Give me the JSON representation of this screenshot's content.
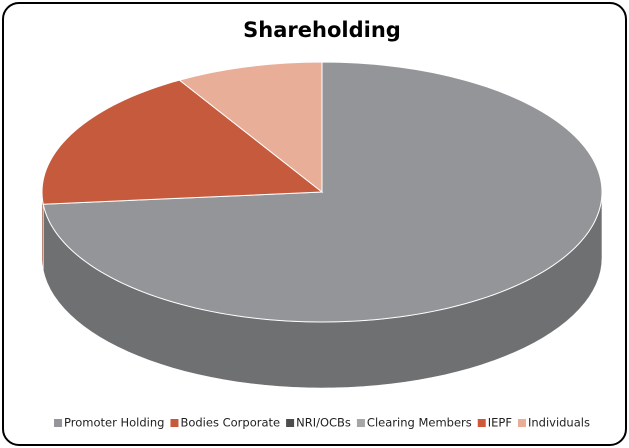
{
  "chart_data": {
    "type": "pie3d",
    "title": "Shareholding",
    "categories": [
      "Promoter Holding",
      "Bodies Corporate",
      "NRI/OCBs",
      "Clearing Members",
      "IEPF",
      "Individuals"
    ],
    "values": [
      73.5,
      18,
      0,
      0,
      0,
      8.5
    ],
    "colors": [
      "#939598",
      "#c55a3d",
      "#4d4d4f",
      "#a6a6a6",
      "#d0573a",
      "#e8ae98"
    ],
    "legend": "bottom"
  }
}
